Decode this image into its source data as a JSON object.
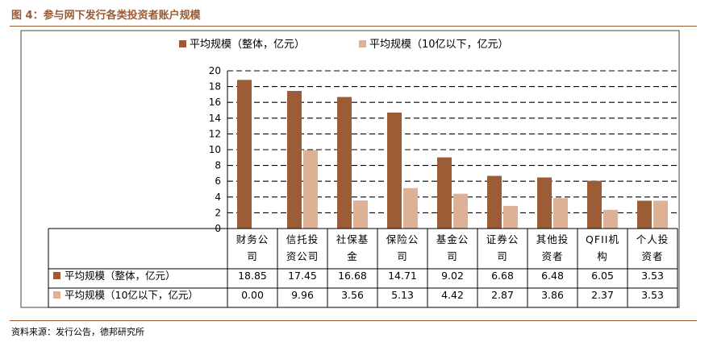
{
  "figure_title": "图 4：参与网下发行各类投资者账户规模",
  "source_note": "资料来源：发行公告，德邦研究所",
  "colors": {
    "series1": "#9C5D36",
    "series2": "#DDB196",
    "accent": "#9C5A34"
  },
  "chart_data": {
    "type": "bar",
    "categories": [
      [
        "财务公",
        "司"
      ],
      [
        "信托投",
        "资公司"
      ],
      [
        "社保基",
        "金"
      ],
      [
        "保险公",
        "司"
      ],
      [
        "基金公",
        "司"
      ],
      [
        "证券公",
        "司"
      ],
      [
        "其他投",
        "资者"
      ],
      [
        "QFII机",
        "构"
      ],
      [
        "个人投",
        "资者"
      ]
    ],
    "series": [
      {
        "name": "平均规模（整体，亿元）",
        "values": [
          18.85,
          17.45,
          16.68,
          14.71,
          9.02,
          6.68,
          6.48,
          6.05,
          3.53
        ],
        "labels": [
          "18.85",
          "17.45",
          "16.68",
          "14.71",
          "9.02",
          "6.68",
          "6.48",
          "6.05",
          "3.53"
        ]
      },
      {
        "name": "平均规模（10亿以下，亿元）",
        "values": [
          0.0,
          9.96,
          3.56,
          5.13,
          4.42,
          2.87,
          3.86,
          2.37,
          3.53
        ],
        "labels": [
          "0.00",
          "9.96",
          "3.56",
          "5.13",
          "4.42",
          "2.87",
          "3.86",
          "2.37",
          "3.53"
        ]
      }
    ],
    "ylim": [
      0,
      20
    ],
    "yticks": [
      "0",
      "2",
      "4",
      "6",
      "8",
      "10",
      "12",
      "14",
      "16",
      "18",
      "20"
    ],
    "grid": "horizontal-dashed",
    "legend": "top-center",
    "data_table": true
  }
}
